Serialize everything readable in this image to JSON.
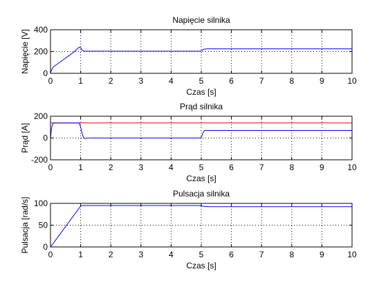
{
  "figure": {
    "background": "#ffffff"
  },
  "chart_data": [
    {
      "type": "line",
      "title": "Napięcie silnika",
      "xlabel": "Czas [s]",
      "ylabel": "Napięcie [V]",
      "xlim": [
        0,
        10
      ],
      "ylim": [
        0,
        400
      ],
      "xticks": [
        0,
        1,
        2,
        3,
        4,
        5,
        6,
        7,
        8,
        9,
        10
      ],
      "yticks": [
        0,
        200,
        400
      ],
      "grid": true,
      "series": [
        {
          "color": "#0000ff",
          "x": [
            0,
            0.02,
            0.05,
            0.1,
            0.2,
            0.4,
            0.6,
            0.8,
            0.95,
            1.0,
            1.05,
            1.1,
            1.2,
            2,
            3,
            4,
            4.95,
            5.0,
            5.05,
            5.1,
            5.2,
            6,
            7,
            8,
            9,
            10
          ],
          "y": [
            0,
            20,
            40,
            60,
            80,
            120,
            160,
            200,
            240,
            235,
            215,
            205,
            203,
            203,
            203,
            203,
            203,
            205,
            215,
            222,
            225,
            225,
            225,
            225,
            225,
            225
          ]
        }
      ]
    },
    {
      "type": "line",
      "title": "Prąd silnika",
      "xlabel": "Czas [s]",
      "ylabel": "Prąd [A]",
      "xlim": [
        0,
        10
      ],
      "ylim": [
        -200,
        200
      ],
      "xticks": [
        0,
        1,
        2,
        3,
        4,
        5,
        6,
        7,
        8,
        9,
        10
      ],
      "yticks": [
        -200,
        0,
        200
      ],
      "grid": true,
      "series": [
        {
          "color": "#ff0000",
          "x": [
            0,
            10
          ],
          "y": [
            138,
            138
          ]
        },
        {
          "color": "#0000ff",
          "x": [
            0,
            0.03,
            0.06,
            0.1,
            0.2,
            0.5,
            0.95,
            1.0,
            1.05,
            1.1,
            1.15,
            1.2,
            1.3,
            2,
            3,
            4,
            4.98,
            5.02,
            5.08,
            5.12,
            5.2,
            6,
            7,
            8,
            9,
            10
          ],
          "y": [
            0,
            80,
            120,
            138,
            138,
            138,
            138,
            100,
            40,
            0,
            -5,
            0,
            0,
            0,
            0,
            0,
            0,
            20,
            60,
            70,
            70,
            70,
            70,
            70,
            70,
            70
          ]
        }
      ]
    },
    {
      "type": "line",
      "title": "Pulsacja silnika",
      "xlabel": "Czas [s]",
      "ylabel": "Pulsacja [rad/s]",
      "xlim": [
        0,
        10
      ],
      "ylim": [
        0,
        100
      ],
      "xticks": [
        0,
        1,
        2,
        3,
        4,
        5,
        6,
        7,
        8,
        9,
        10
      ],
      "yticks": [
        0,
        50,
        100
      ],
      "grid": true,
      "series": [
        {
          "color": "#0000ff",
          "x": [
            0,
            0.1,
            0.5,
            1.0,
            1.1,
            2,
            3,
            4,
            4.95,
            5.1,
            5.3,
            6,
            7,
            8,
            9,
            10
          ],
          "y": [
            0,
            9,
            47,
            94,
            95,
            95,
            95,
            95,
            95,
            93,
            92.5,
            92.5,
            92.5,
            92.5,
            92.5,
            92.5
          ]
        }
      ]
    }
  ]
}
